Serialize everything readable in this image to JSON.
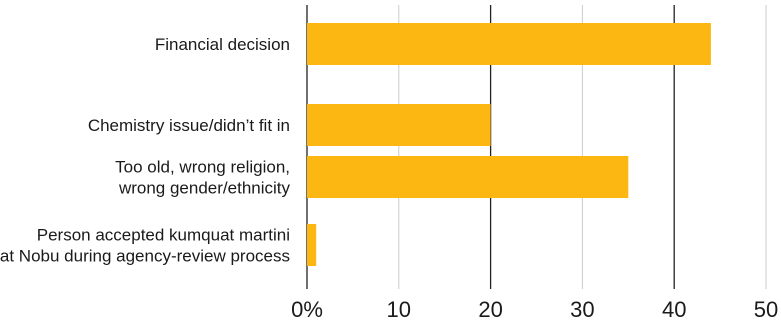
{
  "chart_data": {
    "type": "bar",
    "orientation": "horizontal",
    "title": "",
    "xlabel": "",
    "ylabel": "",
    "categories": [
      [
        "Financial decision"
      ],
      [
        "Chemistry issue/didn’t fit in"
      ],
      [
        "Too old, wrong religion,",
        "wrong gender/ethnicity"
      ],
      [
        "Person accepted kumquat martini",
        "at Nobu during agency-review process"
      ]
    ],
    "values": [
      44,
      20,
      35,
      1
    ],
    "xlim": [
      0,
      50
    ],
    "ticks": [
      0,
      10,
      20,
      30,
      40,
      50
    ],
    "tick_labels": [
      "0%",
      "10",
      "20",
      "30",
      "40",
      "50"
    ],
    "grid": "vertical",
    "bar_color": "#FDB713",
    "grid_color": "#cccccc",
    "axis_color": "#222222"
  }
}
